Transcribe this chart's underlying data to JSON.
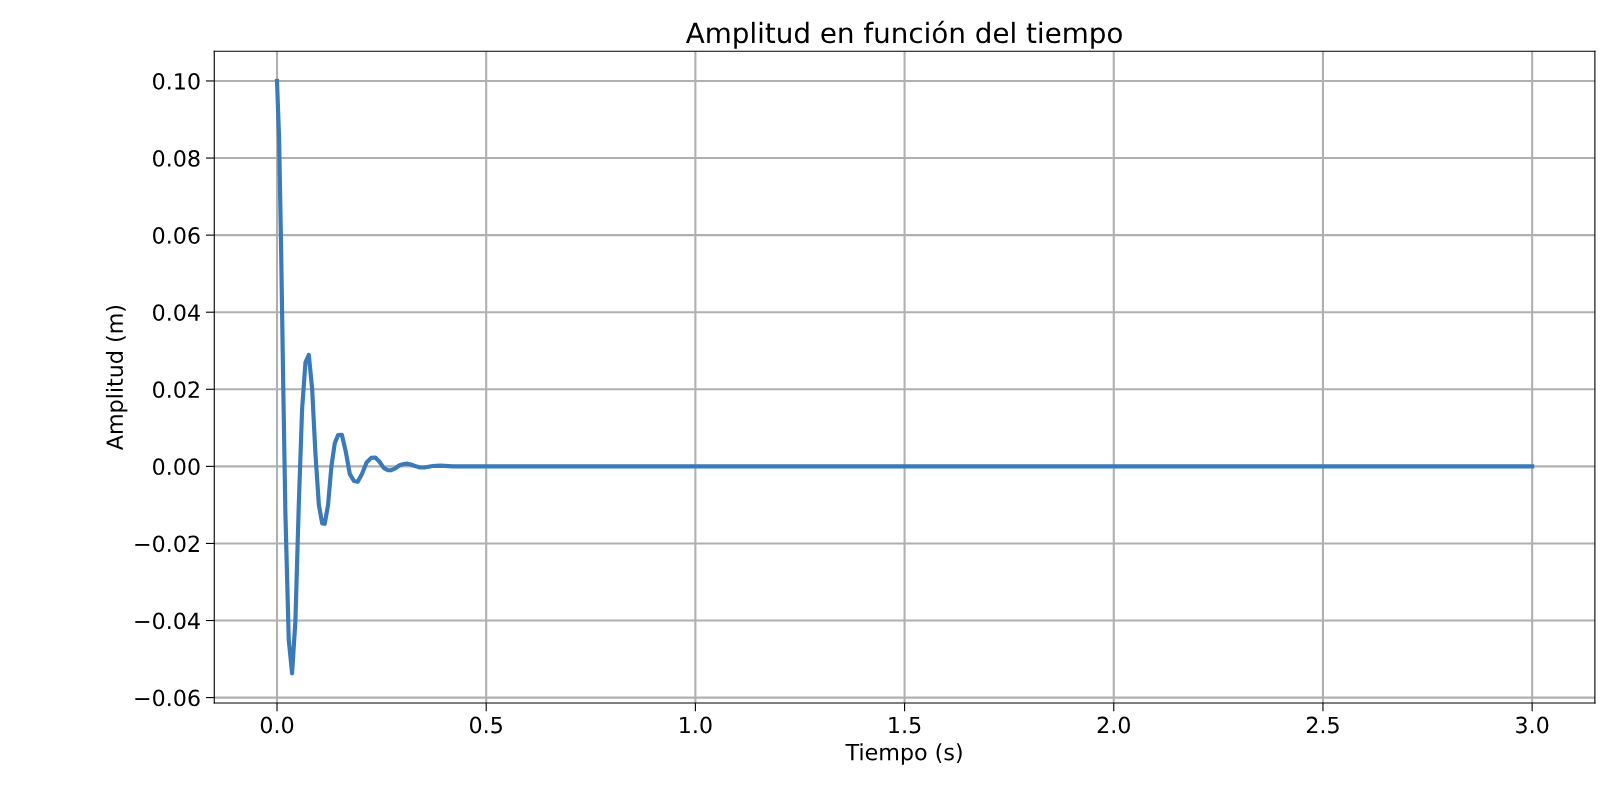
{
  "chart_data": {
    "type": "line",
    "title": "Amplitud en función del tiempo",
    "xlabel": "Tiempo (s)",
    "ylabel": "Amplitud (m)",
    "series": [
      {
        "color": "#3a7ab8",
        "x": [
          0,
          0.005,
          0.01,
          0.015,
          0.02,
          0.028,
          0.036,
          0.044,
          0.052,
          0.06,
          0.068,
          0.076,
          0.084,
          0.092,
          0.1,
          0.108,
          0.114,
          0.122,
          0.13,
          0.138,
          0.146,
          0.155,
          0.164,
          0.174,
          0.184,
          0.193,
          0.203,
          0.214,
          0.225,
          0.235,
          0.245,
          0.255,
          0.265,
          0.273,
          0.283,
          0.293,
          0.303,
          0.312,
          0.322,
          0.332,
          0.342,
          0.352,
          0.362,
          0.372,
          0.39,
          0.42,
          0.45,
          0.5,
          1.0,
          1.5,
          2.0,
          2.5,
          3.0
        ],
        "values": [
          0.1,
          0.085,
          0.055,
          0.02,
          -0.012,
          -0.045,
          -0.0537,
          -0.04,
          -0.01,
          0.015,
          0.027,
          0.0289,
          0.02,
          0.003,
          -0.01,
          -0.0148,
          -0.0149,
          -0.01,
          0.0,
          0.006,
          0.0081,
          0.0082,
          0.004,
          -0.002,
          -0.0038,
          -0.004,
          -0.002,
          0.001,
          0.0022,
          0.0023,
          0.0012,
          -0.0004,
          -0.001,
          -0.001,
          -0.0005,
          0.0003,
          0.0006,
          0.0007,
          0.0004,
          0.0,
          -0.0003,
          -0.0003,
          -0.0001,
          0.0001,
          0.0002,
          0.0,
          0.0,
          0.0,
          0.0,
          0.0,
          0.0,
          0.0,
          0.0
        ]
      }
    ],
    "xlim": [
      -0.15,
      3.15
    ],
    "xticks": [
      {
        "value": 0,
        "label": "0.0"
      },
      0.5,
      {
        "value": 1,
        "label": "1.0"
      },
      1.5,
      {
        "value": 2,
        "label": "2.0"
      },
      2.5,
      {
        "value": 3,
        "label": "3.0"
      }
    ],
    "ylim": [
      -0.0614,
      0.1077
    ],
    "yticks": [
      {
        "value": -0.06,
        "label": "−0.06"
      },
      {
        "value": -0.04,
        "label": "−0.04"
      },
      {
        "value": -0.02,
        "label": "−0.02"
      },
      {
        "value": 0,
        "label": "0.00"
      },
      {
        "value": 0.02,
        "label": "0.02"
      },
      {
        "value": 0.04,
        "label": "0.04"
      },
      {
        "value": 0.06,
        "label": "0.06"
      },
      {
        "value": 0.08,
        "label": "0.08"
      },
      {
        "value": 0.1,
        "label": "0.10"
      }
    ],
    "grid": true,
    "legend": false
  }
}
